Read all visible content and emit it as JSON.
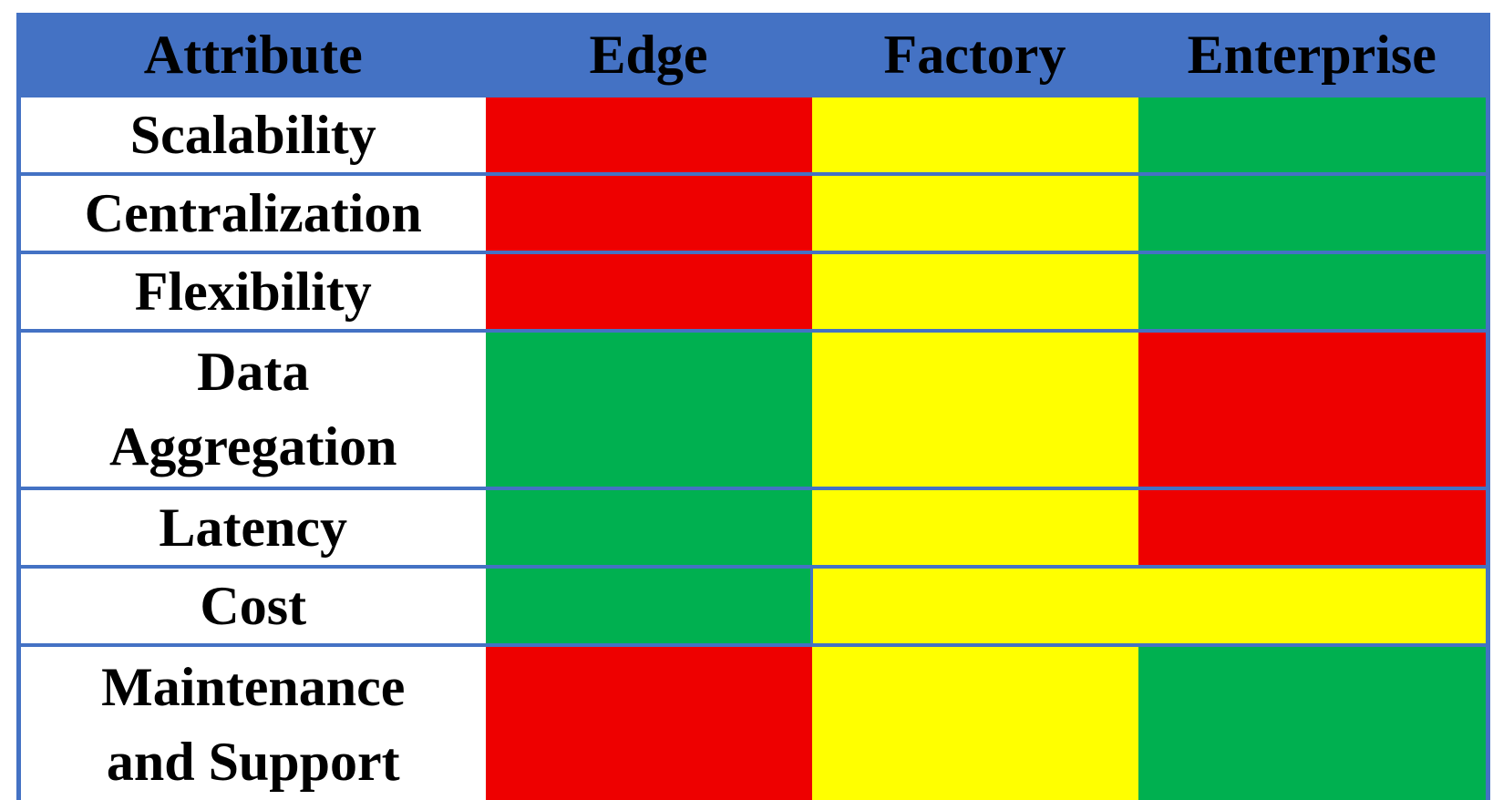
{
  "chart_data": {
    "type": "table",
    "description_of_visual": "Color-coded comparison matrix of attributes across Edge, Factory and Enterprise; cells are rated by fill color (red, yellow, green)",
    "columns": [
      "Attribute",
      "Edge",
      "Factory",
      "Enterprise"
    ],
    "colors": {
      "red": "#EE0000",
      "yellow": "#FFFF00",
      "green": "#00B050",
      "header_bg": "#4472C4",
      "border": "#4472C4",
      "attribute_bg": "#FFFFFF",
      "text": "#000000"
    },
    "rows": [
      {
        "attribute": "Scalability",
        "label_lines": [
          "Scalability"
        ],
        "edge": "red",
        "factory": "yellow",
        "enterprise": "green"
      },
      {
        "attribute": "Centralization",
        "label_lines": [
          "Centralization"
        ],
        "edge": "red",
        "factory": "yellow",
        "enterprise": "green"
      },
      {
        "attribute": "Flexibility",
        "label_lines": [
          "Flexibility"
        ],
        "edge": "red",
        "factory": "yellow",
        "enterprise": "green"
      },
      {
        "attribute": "Data Aggregation",
        "label_lines": [
          "Data",
          "Aggregation"
        ],
        "edge": "green",
        "factory": "yellow",
        "enterprise": "red"
      },
      {
        "attribute": "Latency",
        "label_lines": [
          "Latency"
        ],
        "edge": "green",
        "factory": "yellow",
        "enterprise": "red"
      },
      {
        "attribute": "Cost",
        "label_lines": [
          "Cost"
        ],
        "edge": "green",
        "factory": "yellow",
        "enterprise": "yellow",
        "factory_enterprise_merged": true,
        "factory_enterprise": "yellow"
      },
      {
        "attribute": "Maintenance and Support",
        "label_lines": [
          "Maintenance",
          "and Support"
        ],
        "edge": "red",
        "factory": "yellow",
        "enterprise": "green"
      }
    ]
  }
}
